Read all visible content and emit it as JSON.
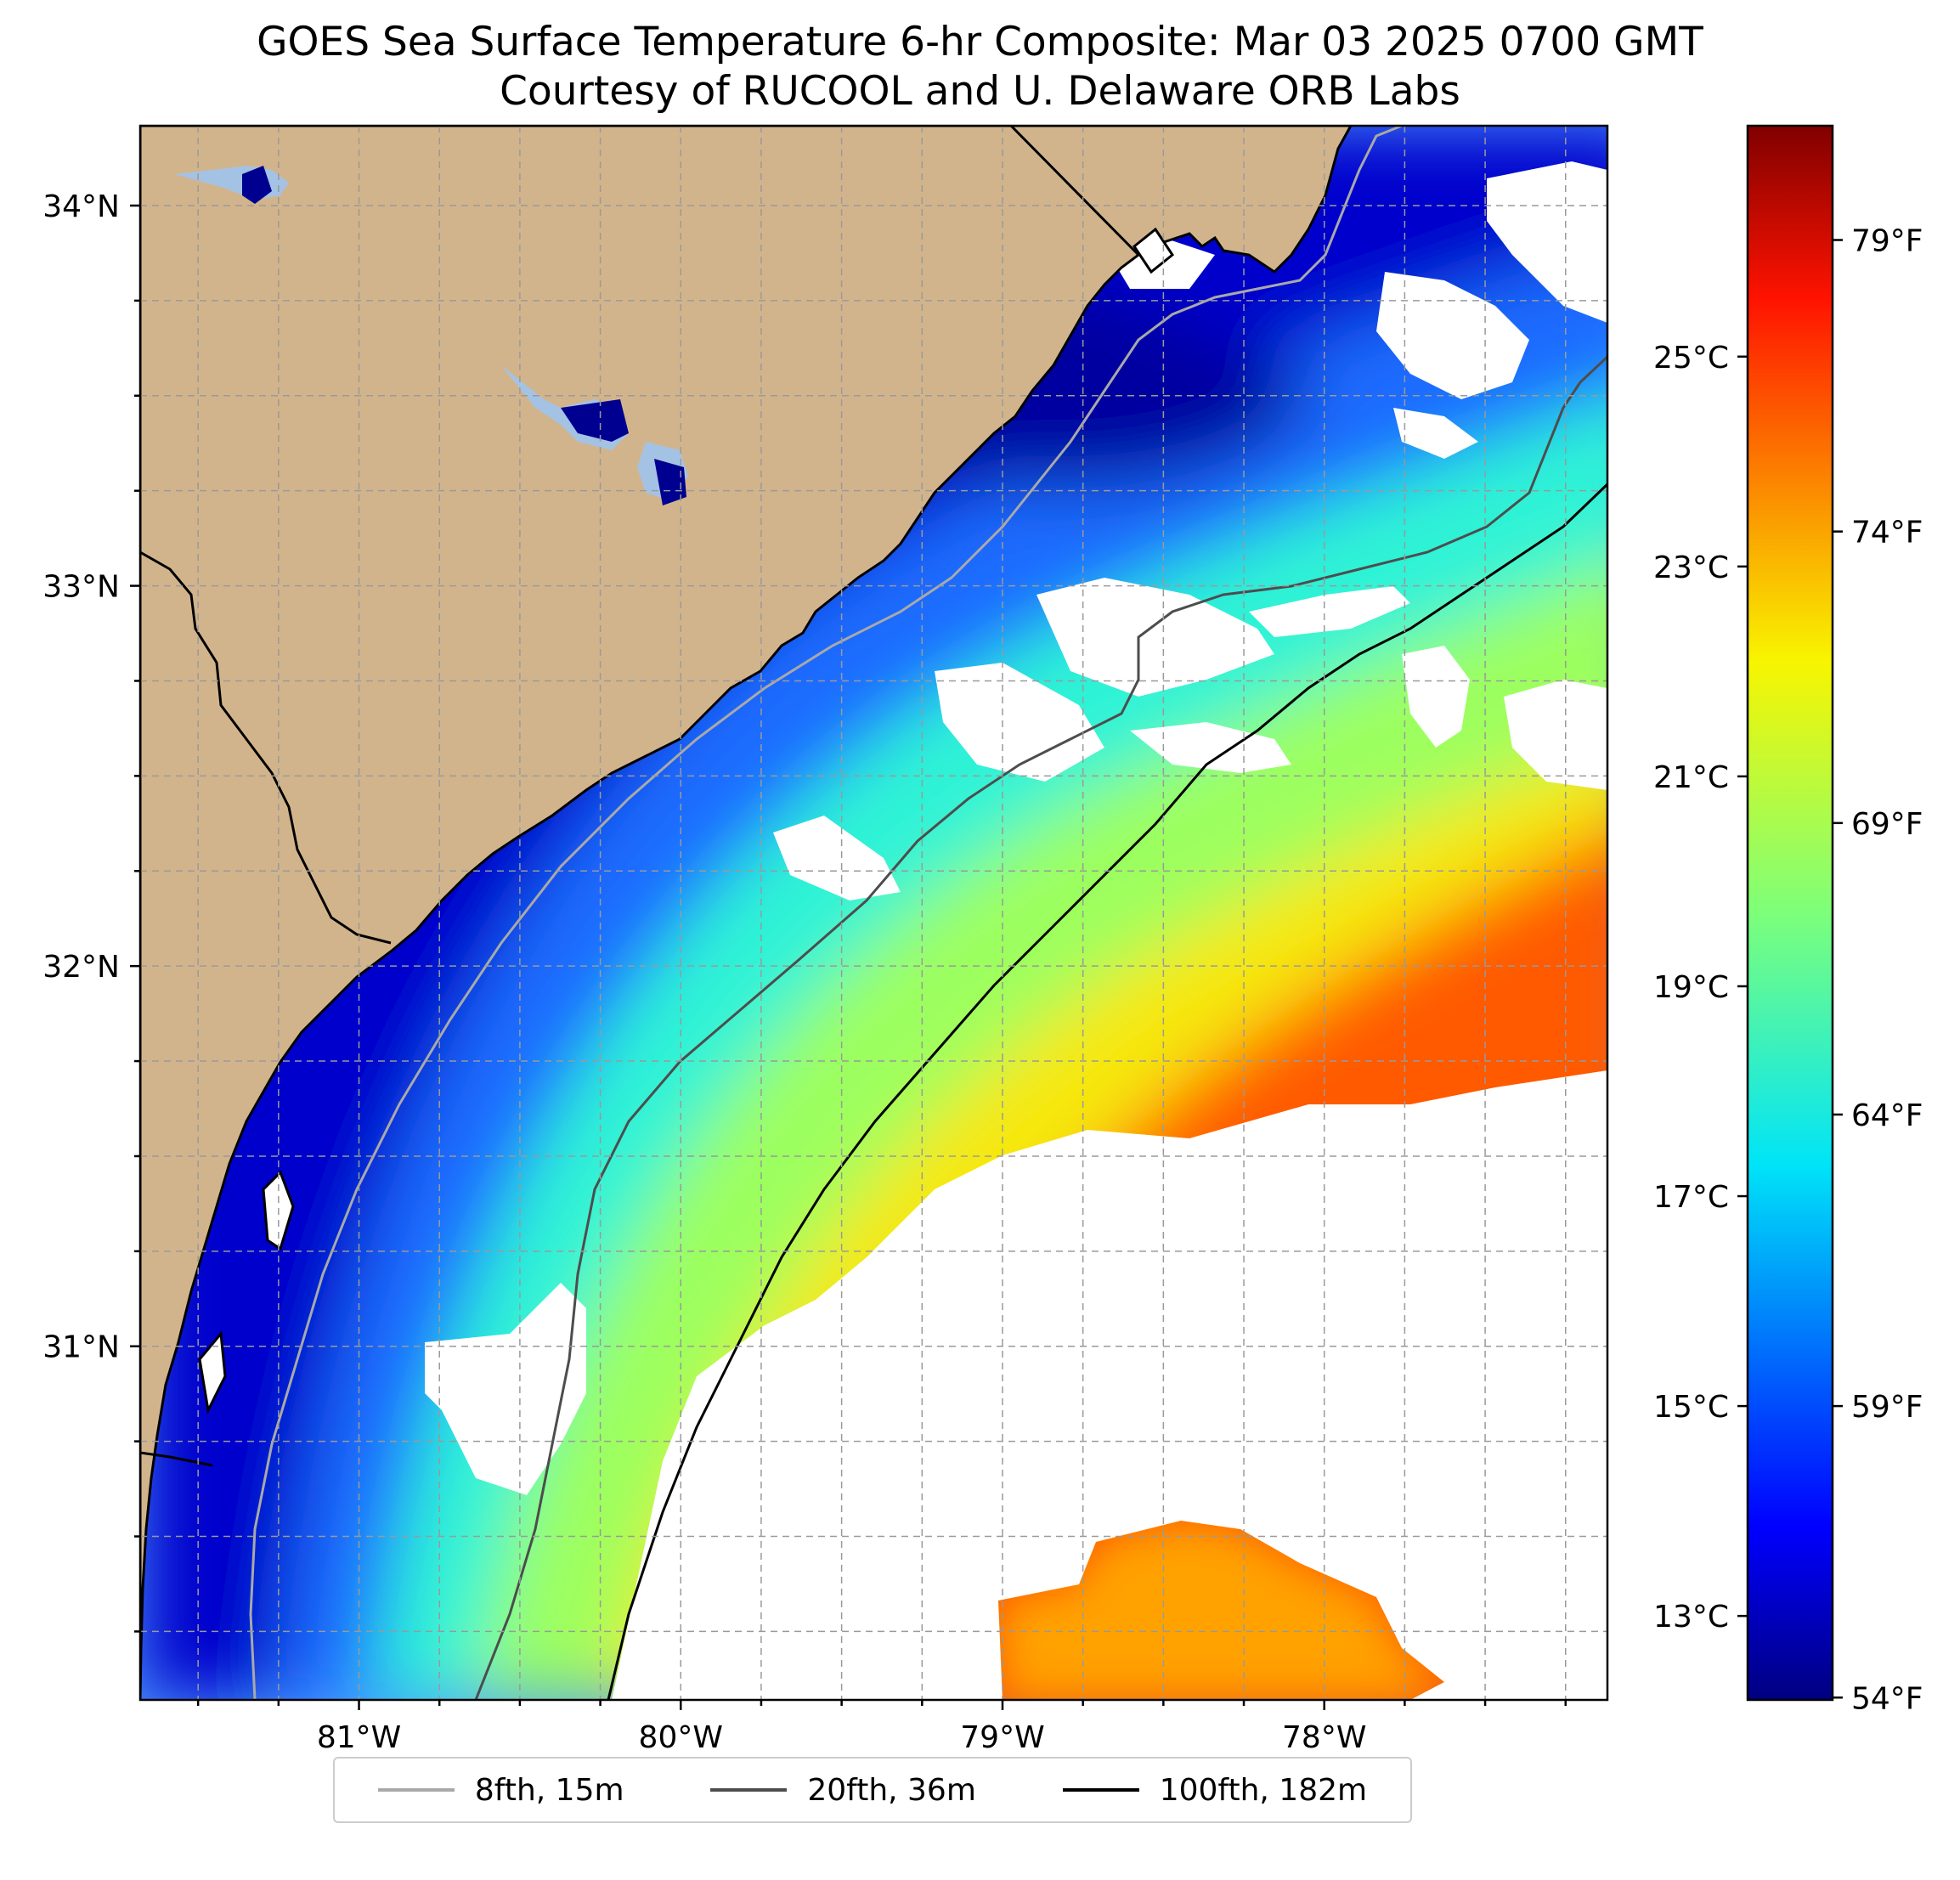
{
  "title": {
    "line1": "GOES Sea Surface Temperature 6-hr Composite: Mar 03 2025 0700 GMT",
    "line2": "Courtesy of RUCOOL and U. Delaware ORB Labs"
  },
  "map": {
    "lon_range": [
      -81.68,
      -77.12
    ],
    "lat_range": [
      30.07,
      34.21
    ],
    "lon_ticks": [
      {
        "value": -81,
        "label": "81°W"
      },
      {
        "value": -80,
        "label": "80°W"
      },
      {
        "value": -79,
        "label": "79°W"
      },
      {
        "value": -78,
        "label": "78°W"
      }
    ],
    "lat_ticks": [
      {
        "value": 31,
        "label": "31°N"
      },
      {
        "value": 32,
        "label": "32°N"
      },
      {
        "value": 33,
        "label": "33°N"
      },
      {
        "value": 34,
        "label": "34°N"
      }
    ],
    "grid": "dashed, 0.25° spacing",
    "colors": {
      "land": "#d2b48c",
      "water_missing": "#ffffff",
      "inland_water": "#a4c2e4",
      "isobath_8fth": "#a9a9a9",
      "isobath_20fth": "#4d4d4d",
      "isobath_100fth": "#000000"
    }
  },
  "colorbar": {
    "colormap": "jet",
    "range_c": [
      12.2,
      27.2
    ],
    "celsius_ticks": [
      {
        "value": 13,
        "label": "13°C"
      },
      {
        "value": 15,
        "label": "15°C"
      },
      {
        "value": 17,
        "label": "17°C"
      },
      {
        "value": 19,
        "label": "19°C"
      },
      {
        "value": 21,
        "label": "21°C"
      },
      {
        "value": 23,
        "label": "23°C"
      },
      {
        "value": 25,
        "label": "25°C"
      }
    ],
    "fahrenheit_ticks": [
      {
        "value": 54,
        "label": "54°F"
      },
      {
        "value": 59,
        "label": "59°F"
      },
      {
        "value": 64,
        "label": "64°F"
      },
      {
        "value": 69,
        "label": "69°F"
      },
      {
        "value": 74,
        "label": "74°F"
      },
      {
        "value": 79,
        "label": "79°F"
      }
    ]
  },
  "legend": {
    "items": [
      {
        "label": "8fth, 15m",
        "color": "#a9a9a9"
      },
      {
        "label": "20fth, 36m",
        "color": "#4d4d4d"
      },
      {
        "label": "100fth, 182m",
        "color": "#000000"
      }
    ]
  }
}
